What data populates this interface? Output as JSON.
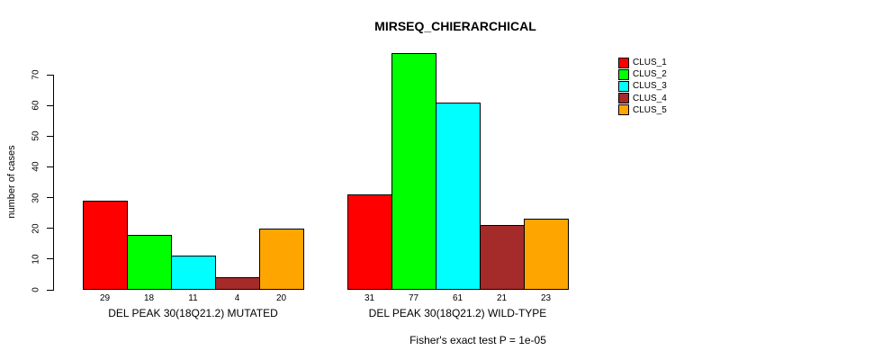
{
  "chart_data": {
    "type": "bar",
    "title": "MIRSEQ_CHIERARCHICAL",
    "ylabel": "number of cases",
    "ylim": [
      0,
      77
    ],
    "yticks": [
      0,
      10,
      20,
      30,
      40,
      50,
      60,
      70
    ],
    "grid": false,
    "legend_position": "right",
    "series": [
      "CLUS_1",
      "CLUS_2",
      "CLUS_3",
      "CLUS_4",
      "CLUS_5"
    ],
    "colors": [
      "#ff0000",
      "#00ff00",
      "#00ffff",
      "#a52a2a",
      "#ffa500"
    ],
    "groups": [
      {
        "label": "DEL PEAK 30(18Q21.2) MUTATED",
        "values": [
          29,
          18,
          11,
          4,
          20
        ]
      },
      {
        "label": "DEL PEAK 30(18Q21.2) WILD-TYPE",
        "values": [
          31,
          77,
          61,
          21,
          23
        ]
      }
    ],
    "annotation": "Fisher's exact test P = 1e-05"
  }
}
